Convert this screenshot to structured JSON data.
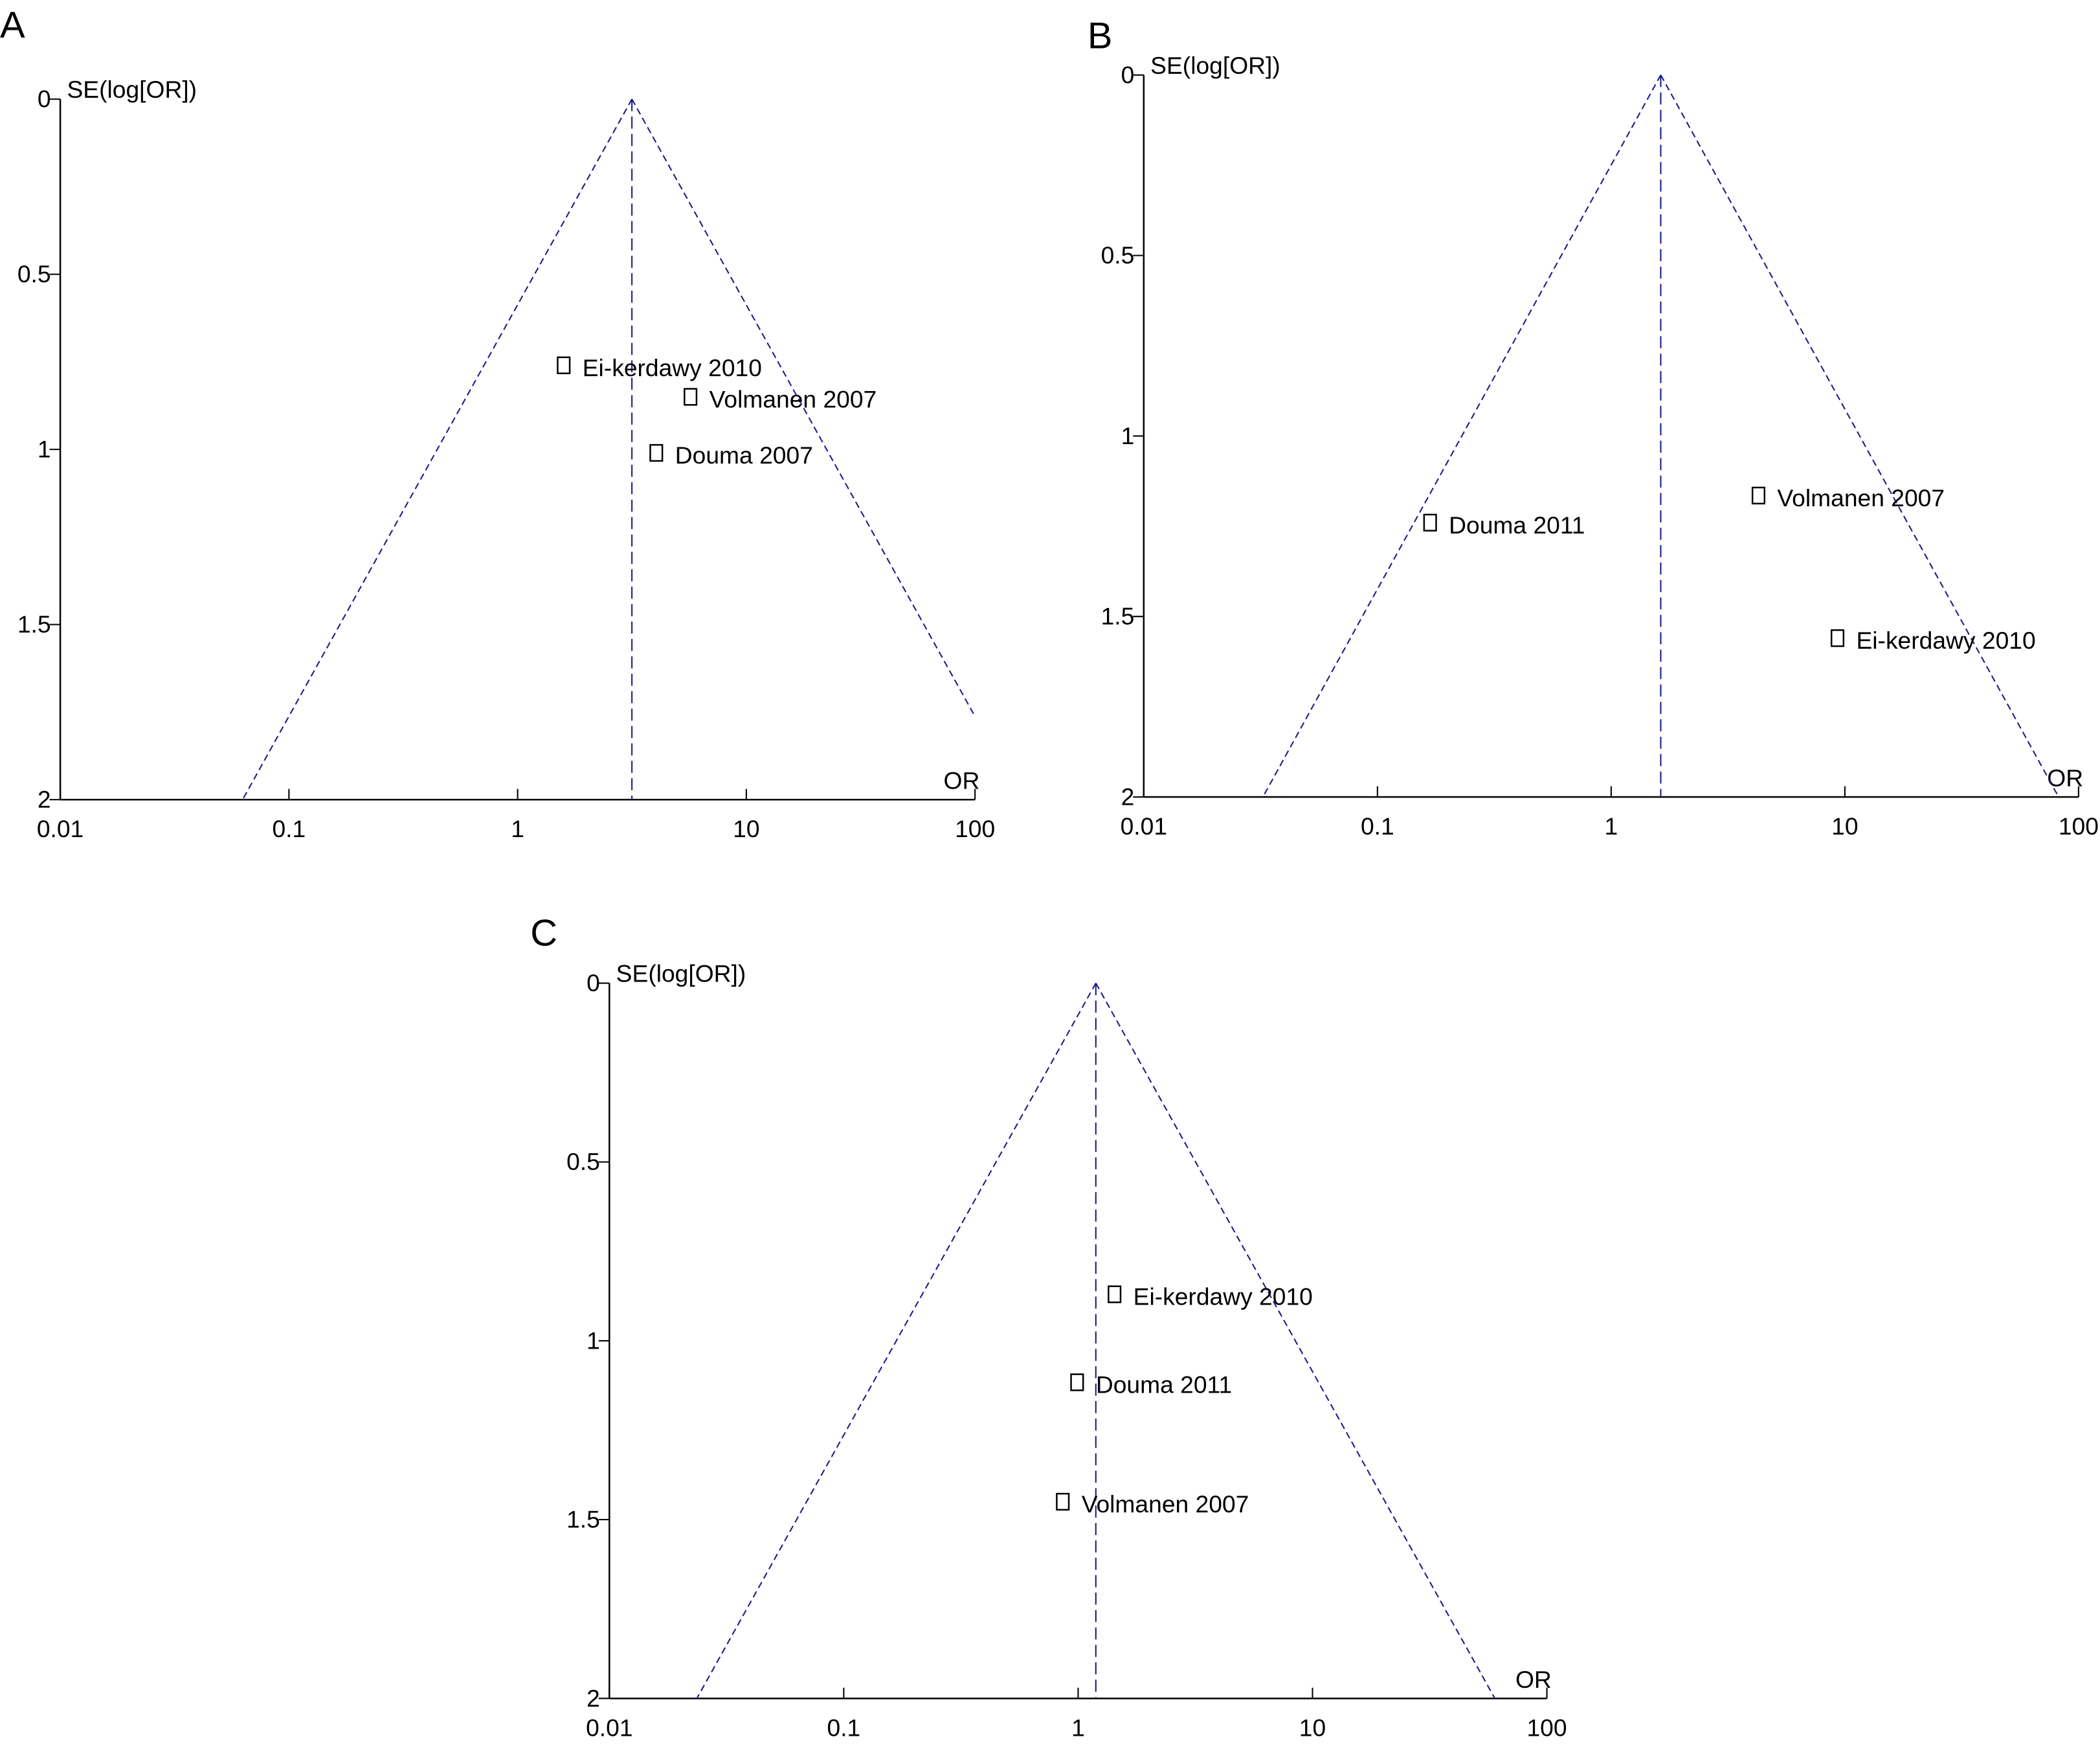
{
  "colors": {
    "funnel": "#1a1a8c",
    "axis": "#000000",
    "marker": "#000000"
  },
  "chart_data": [
    {
      "type": "scatter",
      "panel": "A",
      "title": "A",
      "xlabel": "OR",
      "ylabel": "SE(log[OR])",
      "xscale": "log",
      "xlim": [
        0.01,
        100
      ],
      "ylim": [
        0,
        2
      ],
      "y_inverted": true,
      "xticks": [
        "0.01",
        "0.1",
        "1",
        "10",
        "100"
      ],
      "xtick_values": [
        0.01,
        0.1,
        1,
        10,
        100
      ],
      "yticks": [
        "0",
        "0.5",
        "1",
        "1.5",
        "2"
      ],
      "ytick_values": [
        0,
        0.5,
        1,
        1.5,
        2
      ],
      "pooled_or": 3.16,
      "points": [
        {
          "label": "Ei-kerdawy 2010",
          "or": 1.59,
          "se": 0.76
        },
        {
          "label": "Volmanen 2007",
          "or": 5.7,
          "se": 0.85
        },
        {
          "label": "Douma 2007",
          "or": 4.04,
          "se": 1.01
        }
      ]
    },
    {
      "type": "scatter",
      "panel": "B",
      "title": "B",
      "xlabel": "OR",
      "ylabel": "SE(log[OR])",
      "xscale": "log",
      "xlim": [
        0.01,
        100
      ],
      "ylim": [
        0,
        2
      ],
      "y_inverted": true,
      "xticks": [
        "0.01",
        "0.1",
        "1",
        "10",
        "100"
      ],
      "xtick_values": [
        0.01,
        0.1,
        1,
        10,
        100
      ],
      "yticks": [
        "0",
        "0.5",
        "1",
        "1.5",
        "2"
      ],
      "ytick_values": [
        0,
        0.5,
        1,
        1.5,
        2
      ],
      "pooled_or": 1.63,
      "points": [
        {
          "label": "Douma 2011",
          "or": 0.168,
          "se": 1.24
        },
        {
          "label": "Volmanen 2007",
          "or": 4.27,
          "se": 1.165
        },
        {
          "label": "Ei-kerdawy 2010",
          "or": 9.3,
          "se": 1.56
        }
      ]
    },
    {
      "type": "scatter",
      "panel": "C",
      "title": "C",
      "xlabel": "OR",
      "ylabel": "SE(log[OR])",
      "xscale": "log",
      "xlim": [
        0.01,
        100
      ],
      "ylim": [
        0,
        2
      ],
      "y_inverted": true,
      "xticks": [
        "0.01",
        "0.1",
        "1",
        "10",
        "100"
      ],
      "xtick_values": [
        0.01,
        0.1,
        1,
        10,
        100
      ],
      "yticks": [
        "0",
        "0.5",
        "1",
        "1.5",
        "2"
      ],
      "ytick_values": [
        0,
        0.5,
        1,
        1.5,
        2
      ],
      "pooled_or": 1.19,
      "points": [
        {
          "label": "Ei-kerdawy 2010",
          "or": 1.43,
          "se": 0.87
        },
        {
          "label": "Douma 2011",
          "or": 0.99,
          "se": 1.116
        },
        {
          "label": "Volmanen 2007",
          "or": 0.86,
          "se": 1.45
        }
      ]
    }
  ]
}
